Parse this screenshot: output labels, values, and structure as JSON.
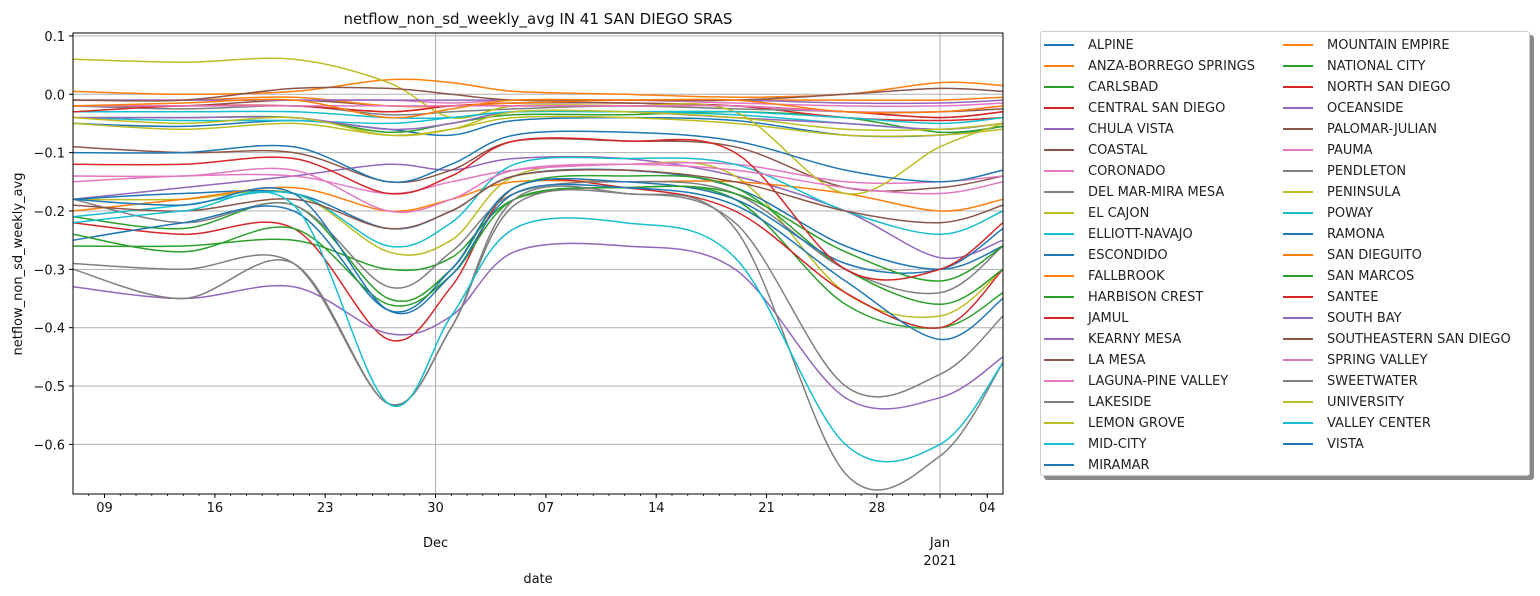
{
  "chart_data": {
    "type": "line",
    "title": "netflow_non_sd_weekly_avg IN 41 SAN DIEGO SRAS",
    "xlabel": "date",
    "ylabel": "netflow_non_sd_weekly_avg",
    "ylim": [
      -0.685,
      0.105
    ],
    "xlim": [
      "2020-11-07",
      "2021-01-05"
    ],
    "y_ticks": [
      "0.1",
      "0.0",
      "−0.1",
      "−0.2",
      "−0.3",
      "−0.4",
      "−0.5",
      "−0.6"
    ],
    "x_ticks": [
      {
        "date": "2020-11-09",
        "label": "09"
      },
      {
        "date": "2020-11-16",
        "label": "16"
      },
      {
        "date": "2020-11-23",
        "label": "23"
      },
      {
        "date": "2020-11-30",
        "label": "30",
        "sub": "Dec"
      },
      {
        "date": "2020-12-07",
        "label": "07"
      },
      {
        "date": "2020-12-14",
        "label": "14"
      },
      {
        "date": "2020-12-21",
        "label": "21"
      },
      {
        "date": "2020-12-28",
        "label": "28"
      },
      {
        "date": "2021-01-01",
        "label": "Jan",
        "sub": "2021"
      },
      {
        "date": "2021-01-04",
        "label": "04"
      }
    ],
    "grid": "major",
    "legend_position": "outside-right",
    "legend_columns": 2,
    "key_dates": [
      "2020-11-07",
      "2020-11-14",
      "2020-11-21",
      "2020-11-27",
      "2020-12-01",
      "2020-12-05",
      "2020-12-12",
      "2020-12-19",
      "2020-12-26",
      "2021-01-01",
      "2021-01-05"
    ],
    "series": [
      {
        "name": "ALPINE",
        "color": "#1f77b4",
        "values": [
          -0.05,
          -0.055,
          -0.045,
          -0.06,
          -0.07,
          -0.045,
          -0.04,
          -0.045,
          -0.07,
          -0.07,
          -0.055
        ]
      },
      {
        "name": "ANZA-BORREGO SPRINGS",
        "color": "#ff7f0e",
        "values": [
          0.005,
          0.0,
          0.005,
          0.025,
          0.02,
          0.005,
          0.0,
          -0.005,
          0.0,
          0.02,
          0.015
        ]
      },
      {
        "name": "CARLSBAD",
        "color": "#2ca02c",
        "values": [
          -0.04,
          -0.04,
          -0.04,
          -0.065,
          -0.05,
          -0.035,
          -0.035,
          -0.03,
          -0.04,
          -0.065,
          -0.055
        ]
      },
      {
        "name": "CENTRAL SAN DIEGO",
        "color": "#d62728",
        "values": [
          -0.02,
          -0.02,
          -0.02,
          -0.03,
          -0.02,
          -0.015,
          -0.015,
          -0.02,
          -0.04,
          -0.045,
          -0.04
        ]
      },
      {
        "name": "CHULA VISTA",
        "color": "#9467bd",
        "values": [
          -0.18,
          -0.16,
          -0.14,
          -0.12,
          -0.13,
          -0.11,
          -0.11,
          -0.14,
          -0.2,
          -0.28,
          -0.25
        ]
      },
      {
        "name": "COASTAL",
        "color": "#8c564b",
        "values": [
          -0.02,
          -0.02,
          -0.01,
          -0.02,
          -0.02,
          -0.015,
          -0.015,
          -0.02,
          -0.03,
          -0.03,
          -0.025
        ]
      },
      {
        "name": "CORONADO",
        "color": "#e377c2",
        "values": [
          -0.01,
          -0.01,
          -0.01,
          -0.01,
          -0.015,
          -0.01,
          -0.01,
          -0.015,
          -0.02,
          -0.02,
          -0.015
        ]
      },
      {
        "name": "DEL MAR-MIRA MESA",
        "color": "#7f7f7f",
        "values": [
          -0.02,
          -0.025,
          -0.02,
          -0.035,
          -0.03,
          -0.025,
          -0.02,
          -0.025,
          -0.03,
          -0.04,
          -0.03
        ]
      },
      {
        "name": "EL CAJON",
        "color": "#bcbd22",
        "values": [
          -0.18,
          -0.18,
          -0.17,
          -0.27,
          -0.25,
          -0.14,
          -0.12,
          -0.14,
          -0.34,
          -0.38,
          -0.3
        ]
      },
      {
        "name": "ELLIOTT-NAVAJO",
        "color": "#17becf",
        "values": [
          -0.04,
          -0.045,
          -0.045,
          -0.05,
          -0.04,
          -0.03,
          -0.03,
          -0.035,
          -0.05,
          -0.06,
          -0.05
        ]
      },
      {
        "name": "ESCONDIDO",
        "color": "#1f77b4",
        "values": [
          -0.18,
          -0.17,
          -0.17,
          -0.23,
          -0.2,
          -0.14,
          -0.13,
          -0.16,
          -0.26,
          -0.3,
          -0.26
        ]
      },
      {
        "name": "FALLBROOK",
        "color": "#ff7f0e",
        "values": [
          -0.2,
          -0.18,
          -0.16,
          -0.2,
          -0.18,
          -0.15,
          -0.15,
          -0.15,
          -0.17,
          -0.2,
          -0.18
        ]
      },
      {
        "name": "HARBISON CREST",
        "color": "#2ca02c",
        "values": [
          -0.26,
          -0.26,
          -0.25,
          -0.3,
          -0.28,
          -0.18,
          -0.16,
          -0.18,
          -0.36,
          -0.4,
          -0.34
        ]
      },
      {
        "name": "JAMUL",
        "color": "#d62728",
        "values": [
          -0.22,
          -0.24,
          -0.23,
          -0.42,
          -0.33,
          -0.16,
          -0.16,
          -0.2,
          -0.34,
          -0.4,
          -0.3
        ]
      },
      {
        "name": "KEARNY MESA",
        "color": "#9467bd",
        "values": [
          -0.04,
          -0.04,
          -0.04,
          -0.06,
          -0.05,
          -0.03,
          -0.03,
          -0.04,
          -0.05,
          -0.06,
          -0.05
        ]
      },
      {
        "name": "LA MESA",
        "color": "#8c564b",
        "values": [
          -0.09,
          -0.1,
          -0.1,
          -0.15,
          -0.13,
          -0.08,
          -0.08,
          -0.09,
          -0.16,
          -0.16,
          -0.14
        ]
      },
      {
        "name": "LAGUNA-PINE VALLEY",
        "color": "#e377c2",
        "values": [
          -0.15,
          -0.14,
          -0.14,
          -0.17,
          -0.15,
          -0.13,
          -0.12,
          -0.12,
          -0.15,
          -0.15,
          -0.14
        ]
      },
      {
        "name": "LAKESIDE",
        "color": "#7f7f7f",
        "values": [
          -0.29,
          -0.3,
          -0.29,
          -0.53,
          -0.4,
          -0.19,
          -0.17,
          -0.22,
          -0.5,
          -0.48,
          -0.38
        ]
      },
      {
        "name": "LEMON GROVE",
        "color": "#bcbd22",
        "values": [
          0.06,
          0.055,
          0.06,
          0.02,
          -0.04,
          -0.02,
          -0.02,
          -0.03,
          -0.17,
          -0.09,
          -0.05
        ]
      },
      {
        "name": "MID-CITY",
        "color": "#17becf",
        "values": [
          -0.03,
          -0.03,
          -0.03,
          -0.04,
          -0.04,
          -0.03,
          -0.03,
          -0.03,
          -0.04,
          -0.05,
          -0.04
        ]
      },
      {
        "name": "MIRAMAR",
        "color": "#1f77b4",
        "values": [
          -0.1,
          -0.1,
          -0.09,
          -0.15,
          -0.12,
          -0.07,
          -0.065,
          -0.08,
          -0.13,
          -0.15,
          -0.13
        ]
      },
      {
        "name": "MOUNTAIN EMPIRE",
        "color": "#ff7f0e",
        "values": [
          -0.01,
          -0.01,
          -0.005,
          -0.02,
          -0.02,
          -0.015,
          -0.01,
          -0.01,
          -0.01,
          -0.01,
          -0.005
        ]
      },
      {
        "name": "NATIONAL CITY",
        "color": "#2ca02c",
        "values": [
          -0.21,
          -0.23,
          -0.19,
          -0.35,
          -0.3,
          -0.16,
          -0.14,
          -0.16,
          -0.3,
          -0.36,
          -0.3
        ]
      },
      {
        "name": "NORTH SAN DIEGO",
        "color": "#d62728",
        "values": [
          -0.03,
          -0.02,
          -0.02,
          -0.03,
          -0.02,
          -0.02,
          -0.02,
          -0.02,
          -0.03,
          -0.04,
          -0.03
        ]
      },
      {
        "name": "OCEANSIDE",
        "color": "#9467bd",
        "values": [
          -0.01,
          -0.01,
          -0.01,
          -0.01,
          -0.01,
          -0.01,
          -0.01,
          -0.01,
          -0.015,
          -0.015,
          -0.01
        ]
      },
      {
        "name": "PALOMAR-JULIAN",
        "color": "#8c564b",
        "values": [
          -0.01,
          -0.01,
          0.01,
          0.01,
          0.0,
          -0.01,
          -0.01,
          -0.01,
          0.0,
          0.01,
          0.005
        ]
      },
      {
        "name": "PAUMA",
        "color": "#e377c2",
        "values": [
          -0.02,
          -0.02,
          -0.02,
          -0.02,
          -0.02,
          -0.02,
          -0.02,
          -0.02,
          -0.03,
          -0.03,
          -0.02
        ]
      },
      {
        "name": "PENDLETON",
        "color": "#7f7f7f",
        "values": [
          -0.18,
          -0.22,
          -0.19,
          -0.33,
          -0.27,
          -0.17,
          -0.15,
          -0.17,
          -0.3,
          -0.34,
          -0.26
        ]
      },
      {
        "name": "PENINSULA",
        "color": "#bcbd22",
        "values": [
          -0.05,
          -0.06,
          -0.05,
          -0.07,
          -0.06,
          -0.04,
          -0.04,
          -0.05,
          -0.07,
          -0.07,
          -0.06
        ]
      },
      {
        "name": "POWAY",
        "color": "#17becf",
        "values": [
          -0.21,
          -0.19,
          -0.17,
          -0.26,
          -0.22,
          -0.12,
          -0.11,
          -0.12,
          -0.2,
          -0.24,
          -0.2
        ]
      },
      {
        "name": "RAMONA",
        "color": "#1f77b4",
        "values": [
          -0.25,
          -0.22,
          -0.2,
          -0.37,
          -0.3,
          -0.16,
          -0.15,
          -0.18,
          -0.29,
          -0.3,
          -0.23
        ]
      },
      {
        "name": "SAN DIEGUITO",
        "color": "#ff7f0e",
        "values": [
          -0.02,
          -0.015,
          -0.01,
          -0.04,
          -0.025,
          -0.01,
          -0.01,
          -0.01,
          -0.03,
          -0.03,
          -0.02
        ]
      },
      {
        "name": "SAN MARCOS",
        "color": "#2ca02c",
        "values": [
          -0.24,
          -0.27,
          -0.23,
          -0.36,
          -0.31,
          -0.18,
          -0.16,
          -0.17,
          -0.27,
          -0.32,
          -0.26
        ]
      },
      {
        "name": "SANTEE",
        "color": "#d62728",
        "values": [
          -0.12,
          -0.12,
          -0.11,
          -0.17,
          -0.14,
          -0.08,
          -0.08,
          -0.1,
          -0.3,
          -0.3,
          -0.22
        ]
      },
      {
        "name": "SOUTH BAY",
        "color": "#9467bd",
        "values": [
          -0.33,
          -0.35,
          -0.33,
          -0.41,
          -0.38,
          -0.27,
          -0.26,
          -0.3,
          -0.52,
          -0.52,
          -0.45
        ]
      },
      {
        "name": "SOUTHEASTERN SAN DIEGO",
        "color": "#8c564b",
        "values": [
          -0.19,
          -0.2,
          -0.18,
          -0.23,
          -0.2,
          -0.14,
          -0.13,
          -0.15,
          -0.2,
          -0.22,
          -0.19
        ]
      },
      {
        "name": "SPRING VALLEY",
        "color": "#e377c2",
        "values": [
          -0.14,
          -0.14,
          -0.13,
          -0.2,
          -0.18,
          -0.13,
          -0.12,
          -0.13,
          -0.16,
          -0.17,
          -0.15
        ]
      },
      {
        "name": "SWEETWATER",
        "color": "#7f7f7f",
        "values": [
          -0.3,
          -0.35,
          -0.29,
          -0.53,
          -0.4,
          -0.18,
          -0.17,
          -0.23,
          -0.65,
          -0.62,
          -0.46
        ]
      },
      {
        "name": "UNIVERSITY",
        "color": "#bcbd22",
        "values": [
          -0.04,
          -0.05,
          -0.04,
          -0.07,
          -0.06,
          -0.03,
          -0.03,
          -0.04,
          -0.06,
          -0.06,
          -0.05
        ]
      },
      {
        "name": "VALLEY CENTER",
        "color": "#17becf",
        "values": [
          -0.22,
          -0.2,
          -0.19,
          -0.53,
          -0.38,
          -0.23,
          -0.22,
          -0.28,
          -0.6,
          -0.6,
          -0.46
        ]
      },
      {
        "name": "VISTA",
        "color": "#1f77b4",
        "values": [
          -0.18,
          -0.19,
          -0.17,
          -0.37,
          -0.31,
          -0.17,
          -0.16,
          -0.19,
          -0.32,
          -0.42,
          -0.35
        ]
      }
    ]
  }
}
